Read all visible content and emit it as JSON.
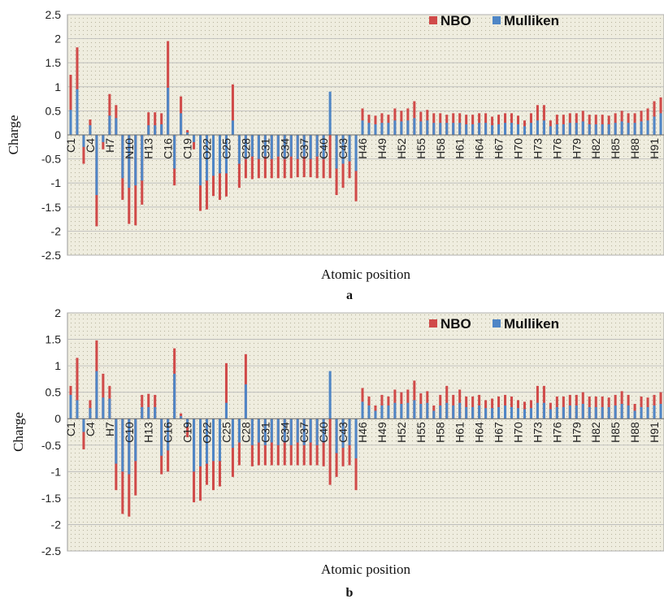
{
  "colors": {
    "nbo": "#d04a49",
    "mulliken": "#4f86c6",
    "plot_bg": "#efeddf",
    "grid": "#b8b8b8"
  },
  "chart_data": [
    {
      "type": "bar",
      "panel_label": "a",
      "xlabel": "Atomic position",
      "ylabel": "Charge",
      "ylim": [
        -2.5,
        2.5
      ],
      "yticks": [
        2.5,
        2,
        1.5,
        1,
        0.5,
        0,
        -0.5,
        -1,
        -1.5,
        -2,
        -2.5
      ],
      "legend_position": "top-right",
      "category_labels": [
        {
          "index": 0,
          "label": "C1"
        },
        {
          "index": 3,
          "label": "C4"
        },
        {
          "index": 6,
          "label": "H7"
        },
        {
          "index": 9,
          "label": "N10"
        },
        {
          "index": 12,
          "label": "H13"
        },
        {
          "index": 15,
          "label": "C16"
        },
        {
          "index": 18,
          "label": "C19"
        },
        {
          "index": 21,
          "label": "O22"
        },
        {
          "index": 24,
          "label": "C25"
        },
        {
          "index": 27,
          "label": "C28"
        },
        {
          "index": 30,
          "label": "C31"
        },
        {
          "index": 33,
          "label": "C34"
        },
        {
          "index": 36,
          "label": "C37"
        },
        {
          "index": 39,
          "label": "C40"
        },
        {
          "index": 42,
          "label": "C43"
        },
        {
          "index": 45,
          "label": "H46"
        },
        {
          "index": 48,
          "label": "H49"
        },
        {
          "index": 51,
          "label": "H52"
        },
        {
          "index": 54,
          "label": "H55"
        },
        {
          "index": 57,
          "label": "H58"
        },
        {
          "index": 60,
          "label": "H61"
        },
        {
          "index": 63,
          "label": "H64"
        },
        {
          "index": 66,
          "label": "H67"
        },
        {
          "index": 69,
          "label": "H70"
        },
        {
          "index": 72,
          "label": "H73"
        },
        {
          "index": 75,
          "label": "H76"
        },
        {
          "index": 78,
          "label": "H79"
        },
        {
          "index": 81,
          "label": "H82"
        },
        {
          "index": 84,
          "label": "H85"
        },
        {
          "index": 87,
          "label": "H88"
        },
        {
          "index": 90,
          "label": "H91"
        }
      ],
      "series": [
        {
          "name": "NBO",
          "values": [
            1.25,
            1.82,
            -0.6,
            0.32,
            -1.9,
            -0.3,
            0.85,
            0.62,
            -1.35,
            -1.85,
            -1.88,
            -1.45,
            0.47,
            0.47,
            0.45,
            1.95,
            -1.05,
            0.8,
            0.1,
            -0.3,
            -1.58,
            -1.55,
            -1.27,
            -1.35,
            -1.28,
            1.05,
            -1.1,
            -0.9,
            -0.92,
            -0.9,
            -0.9,
            -0.9,
            -0.9,
            -0.9,
            -0.9,
            -0.88,
            -0.88,
            -0.88,
            -0.9,
            -0.9,
            -0.9,
            -1.25,
            -1.1,
            -0.9,
            -1.38,
            0.55,
            0.42,
            0.4,
            0.45,
            0.42,
            0.55,
            0.5,
            0.55,
            0.7,
            0.48,
            0.52,
            0.45,
            0.45,
            0.42,
            0.45,
            0.45,
            0.42,
            0.42,
            0.45,
            0.45,
            0.38,
            0.42,
            0.45,
            0.45,
            0.4,
            0.3,
            0.45,
            0.62,
            0.62,
            0.3,
            0.42,
            0.42,
            0.45,
            0.45,
            0.5,
            0.42,
            0.42,
            0.42,
            0.4,
            0.45,
            0.5,
            0.45,
            0.45,
            0.5,
            0.55,
            0.7,
            0.78
          ]
        },
        {
          "name": "Mulliken",
          "values": [
            0.52,
            0.95,
            -0.25,
            0.2,
            -1.25,
            -0.15,
            0.4,
            0.35,
            -0.9,
            -1.1,
            -1.05,
            -0.95,
            0.2,
            0.2,
            0.22,
            0.98,
            -0.7,
            0.45,
            0.05,
            -0.15,
            -1.05,
            -0.95,
            -0.85,
            -0.8,
            -0.8,
            0.3,
            -0.6,
            -0.5,
            -0.45,
            -0.5,
            -0.45,
            -0.5,
            -0.45,
            -0.5,
            -0.45,
            -0.5,
            -0.45,
            -0.5,
            -0.45,
            -0.5,
            0.9,
            -0.7,
            -0.6,
            -0.55,
            -0.75,
            0.3,
            0.25,
            0.22,
            0.25,
            0.25,
            0.3,
            0.28,
            0.3,
            0.35,
            0.28,
            0.3,
            0.25,
            0.25,
            0.25,
            0.25,
            0.25,
            0.22,
            0.22,
            0.25,
            0.25,
            0.2,
            0.22,
            0.25,
            0.25,
            0.22,
            0.18,
            0.25,
            0.3,
            0.3,
            0.18,
            0.22,
            0.22,
            0.25,
            0.25,
            0.28,
            0.22,
            0.22,
            0.22,
            0.22,
            0.25,
            0.28,
            0.25,
            0.25,
            0.28,
            0.3,
            0.38,
            0.45
          ]
        }
      ]
    },
    {
      "type": "bar",
      "panel_label": "b",
      "xlabel": "Atomic position",
      "ylabel": "Charge",
      "ylim": [
        -2.5,
        2
      ],
      "yticks": [
        2,
        1.5,
        1,
        0.5,
        0,
        -0.5,
        -1,
        -1.5,
        -2,
        -2.5
      ],
      "legend_position": "top-right",
      "category_labels": [
        {
          "index": 0,
          "label": "C1"
        },
        {
          "index": 3,
          "label": "C4"
        },
        {
          "index": 6,
          "label": "H7"
        },
        {
          "index": 9,
          "label": "C10"
        },
        {
          "index": 12,
          "label": "H13"
        },
        {
          "index": 15,
          "label": "C16"
        },
        {
          "index": 18,
          "label": "C19"
        },
        {
          "index": 21,
          "label": "O22"
        },
        {
          "index": 24,
          "label": "C25"
        },
        {
          "index": 27,
          "label": "C28"
        },
        {
          "index": 30,
          "label": "C31"
        },
        {
          "index": 33,
          "label": "C34"
        },
        {
          "index": 36,
          "label": "C37"
        },
        {
          "index": 39,
          "label": "C40"
        },
        {
          "index": 42,
          "label": "C43"
        },
        {
          "index": 45,
          "label": "H46"
        },
        {
          "index": 48,
          "label": "H49"
        },
        {
          "index": 51,
          "label": "H52"
        },
        {
          "index": 54,
          "label": "H55"
        },
        {
          "index": 57,
          "label": "H58"
        },
        {
          "index": 60,
          "label": "H61"
        },
        {
          "index": 63,
          "label": "H64"
        },
        {
          "index": 66,
          "label": "H67"
        },
        {
          "index": 69,
          "label": "H70"
        },
        {
          "index": 72,
          "label": "H73"
        },
        {
          "index": 75,
          "label": "H76"
        },
        {
          "index": 78,
          "label": "H79"
        },
        {
          "index": 81,
          "label": "H82"
        },
        {
          "index": 84,
          "label": "H85"
        },
        {
          "index": 87,
          "label": "H88"
        },
        {
          "index": 90,
          "label": "H91"
        }
      ],
      "series": [
        {
          "name": "NBO",
          "values": [
            0.62,
            1.15,
            -0.58,
            0.35,
            1.48,
            0.85,
            0.62,
            -1.35,
            -1.8,
            -1.85,
            -1.45,
            0.45,
            0.47,
            0.45,
            -1.05,
            -1.0,
            1.33,
            0.1,
            -0.35,
            -1.58,
            -1.55,
            -1.25,
            -1.35,
            -1.28,
            1.05,
            -1.1,
            -0.88,
            1.22,
            -0.9,
            -0.88,
            -0.88,
            -0.88,
            -0.88,
            -0.88,
            -0.88,
            -0.88,
            -0.88,
            -0.88,
            -0.88,
            -0.9,
            -1.25,
            -1.1,
            -0.9,
            -0.88,
            -1.35,
            0.58,
            0.42,
            0.25,
            0.45,
            0.42,
            0.55,
            0.5,
            0.55,
            0.72,
            0.48,
            0.52,
            0.25,
            0.45,
            0.62,
            0.45,
            0.55,
            0.42,
            0.42,
            0.45,
            0.35,
            0.38,
            0.42,
            0.45,
            0.42,
            0.35,
            0.32,
            0.35,
            0.62,
            0.62,
            0.3,
            0.42,
            0.42,
            0.45,
            0.45,
            0.5,
            0.42,
            0.42,
            0.42,
            0.4,
            0.45,
            0.52,
            0.45,
            0.28,
            0.42,
            0.4,
            0.45,
            0.5
          ]
        },
        {
          "name": "Mulliken",
          "values": [
            0.45,
            0.35,
            -0.25,
            0.2,
            0.9,
            0.4,
            0.38,
            -0.85,
            -1.0,
            -1.05,
            -0.8,
            0.22,
            0.22,
            0.22,
            -0.7,
            -0.6,
            0.85,
            0.05,
            -0.15,
            -1.0,
            -0.9,
            -0.85,
            -0.8,
            -0.8,
            0.3,
            -0.55,
            -0.45,
            0.65,
            -0.5,
            -0.45,
            -0.5,
            -0.45,
            -0.5,
            -0.45,
            -0.5,
            -0.45,
            -0.5,
            -0.45,
            -0.5,
            -0.45,
            0.9,
            -0.65,
            -0.55,
            -0.5,
            -0.75,
            0.32,
            0.25,
            0.15,
            0.25,
            0.25,
            0.3,
            0.28,
            0.3,
            0.35,
            0.28,
            0.3,
            0.15,
            0.25,
            0.3,
            0.25,
            0.3,
            0.22,
            0.22,
            0.25,
            0.2,
            0.2,
            0.22,
            0.25,
            0.22,
            0.2,
            0.18,
            0.2,
            0.3,
            0.3,
            0.18,
            0.22,
            0.22,
            0.25,
            0.25,
            0.28,
            0.22,
            0.22,
            0.22,
            0.22,
            0.25,
            0.28,
            0.25,
            0.15,
            0.22,
            0.22,
            0.25,
            0.28
          ]
        }
      ]
    }
  ]
}
